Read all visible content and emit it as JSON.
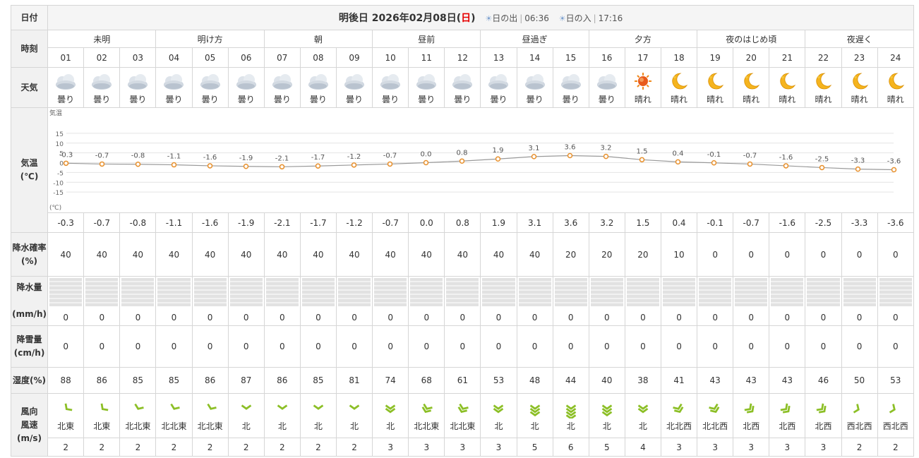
{
  "header": {
    "row_label": "日付",
    "date_prefix": "明後日 2026年02月08日(",
    "weekday": "日",
    "date_suffix": ")",
    "sunrise_label": "日の出",
    "sunrise_time": "06:36",
    "sunset_label": "日の入",
    "sunset_time": "17:16"
  },
  "labels": {
    "time": "時刻",
    "weather": "天気",
    "temp_line1": "気温",
    "temp_line2": "(℃)",
    "prob_line1": "降水確率",
    "prob_line2": "(%)",
    "precip_line1": "降水量",
    "precip_line2": "(mm/h)",
    "snow_line1": "降雪量",
    "snow_line2": "(cm/h)",
    "humidity": "湿度(%)",
    "wind_line1": "風向",
    "wind_line2": "風速",
    "wind_line3": "(m/s)"
  },
  "periods": [
    "未明",
    "明け方",
    "朝",
    "昼前",
    "昼過ぎ",
    "夕方",
    "夜のはじめ頃",
    "夜遅く"
  ],
  "hours": [
    "01",
    "02",
    "03",
    "04",
    "05",
    "06",
    "07",
    "08",
    "09",
    "10",
    "11",
    "12",
    "13",
    "14",
    "15",
    "16",
    "17",
    "18",
    "19",
    "20",
    "21",
    "22",
    "23",
    "24"
  ],
  "weather": [
    {
      "label": "曇り",
      "icon": "cloud-icon"
    },
    {
      "label": "曇り",
      "icon": "cloud-icon"
    },
    {
      "label": "曇り",
      "icon": "cloud-icon"
    },
    {
      "label": "曇り",
      "icon": "cloud-icon"
    },
    {
      "label": "曇り",
      "icon": "cloud-icon"
    },
    {
      "label": "曇り",
      "icon": "cloud-icon"
    },
    {
      "label": "曇り",
      "icon": "cloud-icon"
    },
    {
      "label": "曇り",
      "icon": "cloud-icon"
    },
    {
      "label": "曇り",
      "icon": "cloud-icon"
    },
    {
      "label": "曇り",
      "icon": "cloud-icon"
    },
    {
      "label": "曇り",
      "icon": "cloud-icon"
    },
    {
      "label": "曇り",
      "icon": "cloud-icon"
    },
    {
      "label": "曇り",
      "icon": "cloud-icon"
    },
    {
      "label": "曇り",
      "icon": "cloud-icon"
    },
    {
      "label": "曇り",
      "icon": "cloud-icon"
    },
    {
      "label": "曇り",
      "icon": "cloud-icon"
    },
    {
      "label": "晴れ",
      "icon": "sun-icon"
    },
    {
      "label": "晴れ",
      "icon": "moon-icon"
    },
    {
      "label": "晴れ",
      "icon": "moon-icon"
    },
    {
      "label": "晴れ",
      "icon": "moon-icon"
    },
    {
      "label": "晴れ",
      "icon": "moon-icon"
    },
    {
      "label": "晴れ",
      "icon": "moon-icon"
    },
    {
      "label": "晴れ",
      "icon": "moon-icon"
    },
    {
      "label": "晴れ",
      "icon": "moon-icon"
    }
  ],
  "temperature": [
    "-0.3",
    "-0.7",
    "-0.8",
    "-1.1",
    "-1.6",
    "-1.9",
    "-2.1",
    "-1.7",
    "-1.2",
    "-0.7",
    "0.0",
    "0.8",
    "1.9",
    "3.1",
    "3.6",
    "3.2",
    "1.5",
    "0.4",
    "-0.1",
    "-0.7",
    "-1.6",
    "-2.5",
    "-3.3",
    "-3.6"
  ],
  "precip_prob": [
    "40",
    "40",
    "40",
    "40",
    "40",
    "40",
    "40",
    "40",
    "40",
    "40",
    "40",
    "40",
    "40",
    "40",
    "20",
    "20",
    "20",
    "10",
    "0",
    "0",
    "0",
    "0",
    "0",
    "0"
  ],
  "precip_amount": [
    "0",
    "0",
    "0",
    "0",
    "0",
    "0",
    "0",
    "0",
    "0",
    "0",
    "0",
    "0",
    "0",
    "0",
    "0",
    "0",
    "0",
    "0",
    "0",
    "0",
    "0",
    "0",
    "0",
    "0"
  ],
  "snow_amount": [
    "0",
    "0",
    "0",
    "0",
    "0",
    "0",
    "0",
    "0",
    "0",
    "0",
    "0",
    "0",
    "0",
    "0",
    "0",
    "0",
    "0",
    "0",
    "0",
    "0",
    "0",
    "0",
    "0",
    "0"
  ],
  "humidity": [
    "88",
    "86",
    "85",
    "85",
    "86",
    "87",
    "86",
    "85",
    "81",
    "74",
    "68",
    "61",
    "53",
    "48",
    "44",
    "40",
    "38",
    "41",
    "43",
    "43",
    "43",
    "46",
    "50",
    "53"
  ],
  "wind_dir": [
    "北東",
    "北東",
    "北北東",
    "北北東",
    "北北東",
    "北",
    "北",
    "北",
    "北",
    "北",
    "北北東",
    "北北東",
    "北",
    "北",
    "北",
    "北",
    "北",
    "北北西",
    "北北西",
    "北西",
    "北西",
    "北西",
    "西北西",
    "西北西"
  ],
  "wind_speed": [
    "2",
    "2",
    "2",
    "2",
    "2",
    "2",
    "2",
    "2",
    "2",
    "3",
    "3",
    "3",
    "3",
    "5",
    "6",
    "5",
    "4",
    "3",
    "3",
    "3",
    "3",
    "3",
    "2",
    "2"
  ],
  "colors": {
    "accent_red": "#e60000",
    "temp_line": "#999999",
    "temp_marker": "#e8902c",
    "wind_arrow": "#8cbf26"
  },
  "chart_data": {
    "type": "line",
    "title": "",
    "ylabel": "気温",
    "yunit": "(℃)",
    "ylim": [
      -20,
      20
    ],
    "yticks": [
      "15",
      "10",
      "5",
      "0",
      "-5",
      "-10",
      "-15"
    ],
    "x": [
      "01",
      "02",
      "03",
      "04",
      "05",
      "06",
      "07",
      "08",
      "09",
      "10",
      "11",
      "12",
      "13",
      "14",
      "15",
      "16",
      "17",
      "18",
      "19",
      "20",
      "21",
      "22",
      "23",
      "24"
    ],
    "values": [
      -0.3,
      -0.7,
      -0.8,
      -1.1,
      -1.6,
      -1.9,
      -2.1,
      -1.7,
      -1.2,
      -0.7,
      0.0,
      0.8,
      1.9,
      3.1,
      3.6,
      3.2,
      1.5,
      0.4,
      -0.1,
      -0.7,
      -1.6,
      -2.5,
      -3.3,
      -3.6
    ],
    "labels": [
      "-0.3",
      "-0.7",
      "-0.8",
      "-1.1",
      "-1.6",
      "-1.9",
      "-2.1",
      "-1.7",
      "-1.2",
      "-0.7",
      "0.0",
      "0.8",
      "1.9",
      "3.1",
      "3.6",
      "3.2",
      "1.5",
      "0.4",
      "-0.1",
      "-0.7",
      "-1.6",
      "-2.5",
      "-3.3",
      "-3.6"
    ],
    "grid": true
  }
}
